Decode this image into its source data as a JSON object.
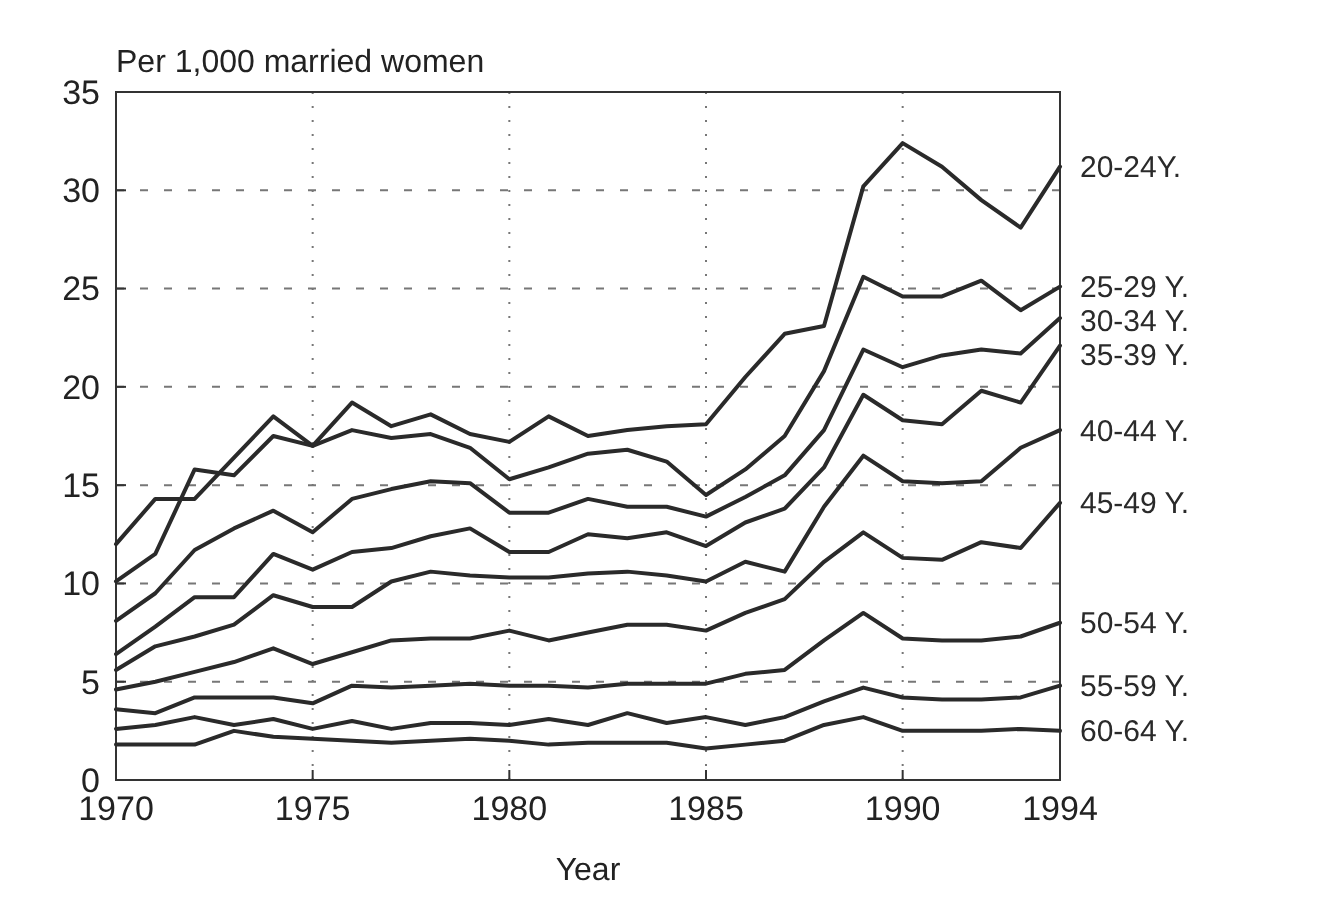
{
  "chart_data": {
    "type": "line",
    "ylabel": "Per 1,000 married women",
    "xlabel": "Year",
    "x": [
      1970,
      1971,
      1972,
      1973,
      1974,
      1975,
      1976,
      1977,
      1978,
      1979,
      1980,
      1981,
      1982,
      1983,
      1984,
      1985,
      1986,
      1987,
      1988,
      1989,
      1990,
      1991,
      1992,
      1993,
      1994
    ],
    "xlim": [
      1970,
      1994
    ],
    "xticks": [
      1970,
      1975,
      1980,
      1985,
      1990,
      1994
    ],
    "ylim": [
      0,
      35
    ],
    "yticks": [
      0,
      5,
      10,
      15,
      20,
      25,
      30,
      35
    ],
    "grid": true,
    "line_style": "solid",
    "series": [
      {
        "name": "20-24Y.",
        "color": "#2a2a2a",
        "values": [
          12.0,
          14.3,
          14.3,
          16.4,
          18.5,
          17.0,
          19.2,
          18.0,
          18.6,
          17.6,
          17.2,
          18.5,
          17.5,
          17.8,
          18.0,
          18.1,
          20.5,
          22.7,
          23.1,
          30.2,
          32.4,
          31.2,
          29.5,
          28.1,
          31.2
        ]
      },
      {
        "name": "25-29 Y.",
        "color": "#2a2a2a",
        "values": [
          10.1,
          11.5,
          15.8,
          15.5,
          17.5,
          17.0,
          17.8,
          17.4,
          17.6,
          16.9,
          15.3,
          15.9,
          16.6,
          16.8,
          16.2,
          14.5,
          15.8,
          17.5,
          20.8,
          25.6,
          24.6,
          24.6,
          25.4,
          23.9,
          25.1
        ]
      },
      {
        "name": "30-34 Y.",
        "color": "#2a2a2a",
        "values": [
          8.1,
          9.5,
          11.7,
          12.8,
          13.7,
          12.6,
          14.3,
          14.8,
          15.2,
          15.1,
          13.6,
          13.6,
          14.3,
          13.9,
          13.9,
          13.4,
          14.4,
          15.5,
          17.8,
          21.9,
          21.0,
          21.6,
          21.9,
          21.7,
          23.5
        ]
      },
      {
        "name": "35-39 Y.",
        "color": "#2a2a2a",
        "values": [
          6.4,
          7.8,
          9.3,
          9.3,
          11.5,
          10.7,
          11.6,
          11.8,
          12.4,
          12.8,
          11.6,
          11.6,
          12.5,
          12.3,
          12.6,
          11.9,
          13.1,
          13.8,
          15.9,
          19.6,
          18.3,
          18.1,
          19.8,
          19.2,
          22.1
        ]
      },
      {
        "name": "40-44 Y.",
        "color": "#2a2a2a",
        "values": [
          5.6,
          6.8,
          7.3,
          7.9,
          9.4,
          8.8,
          8.8,
          10.1,
          10.6,
          10.4,
          10.3,
          10.3,
          10.5,
          10.6,
          10.4,
          10.1,
          11.1,
          10.6,
          13.9,
          16.5,
          15.2,
          15.1,
          15.2,
          16.9,
          17.8
        ]
      },
      {
        "name": "45-49 Y.",
        "color": "#2a2a2a",
        "values": [
          4.6,
          5.0,
          5.5,
          6.0,
          6.7,
          5.9,
          6.5,
          7.1,
          7.2,
          7.2,
          7.6,
          7.1,
          7.5,
          7.9,
          7.9,
          7.6,
          8.5,
          9.2,
          11.1,
          12.6,
          11.3,
          11.2,
          12.1,
          11.8,
          14.1
        ]
      },
      {
        "name": "50-54 Y.",
        "color": "#2a2a2a",
        "values": [
          3.6,
          3.4,
          4.2,
          4.2,
          4.2,
          3.9,
          4.8,
          4.7,
          4.8,
          4.9,
          4.8,
          4.8,
          4.7,
          4.9,
          4.9,
          4.9,
          5.4,
          5.6,
          7.1,
          8.5,
          7.2,
          7.1,
          7.1,
          7.3,
          8.0
        ]
      },
      {
        "name": "55-59 Y.",
        "color": "#2a2a2a",
        "values": [
          2.6,
          2.8,
          3.2,
          2.8,
          3.1,
          2.6,
          3.0,
          2.6,
          2.9,
          2.9,
          2.8,
          3.1,
          2.8,
          3.4,
          2.9,
          3.2,
          2.8,
          3.2,
          4.0,
          4.7,
          4.2,
          4.1,
          4.1,
          4.2,
          4.8
        ]
      },
      {
        "name": "60-64 Y.",
        "color": "#2a2a2a",
        "values": [
          1.8,
          1.8,
          1.8,
          2.5,
          2.2,
          2.1,
          2.0,
          1.9,
          2.0,
          2.1,
          2.0,
          1.8,
          1.9,
          1.9,
          1.9,
          1.6,
          1.8,
          2.0,
          2.8,
          3.2,
          2.5,
          2.5,
          2.5,
          2.6,
          2.5
        ]
      }
    ]
  }
}
